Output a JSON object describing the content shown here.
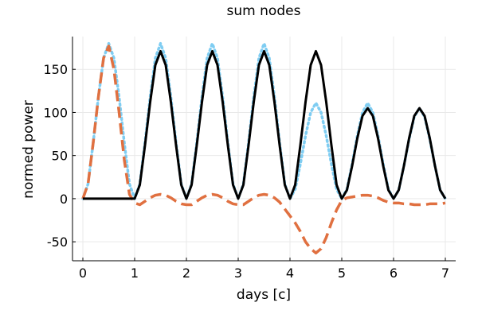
{
  "chart_data": {
    "type": "line",
    "title": "sum nodes",
    "xlabel": "days [c]",
    "ylabel": "normed power",
    "xlim": [
      -0.2,
      7.2
    ],
    "ylim": [
      -72,
      188
    ],
    "xticks": [
      0,
      1,
      2,
      3,
      4,
      5,
      6,
      7
    ],
    "xtick_labels": [
      "0",
      "1",
      "2",
      "3",
      "4",
      "5",
      "6",
      "7"
    ],
    "yticks": [
      -50,
      0,
      50,
      100,
      150
    ],
    "ytick_labels": [
      "-50",
      "0",
      "50",
      "100",
      "150"
    ],
    "grid": true,
    "legend": "none",
    "series": [
      {
        "color": "#7fcdf2",
        "style": "dotted",
        "x": [
          0,
          0.1,
          0.2,
          0.3,
          0.4,
          0.5,
          0.6,
          0.7,
          0.8,
          0.9,
          1.0,
          1.1,
          1.2,
          1.3,
          1.4,
          1.5,
          1.6,
          1.7,
          1.8,
          1.9,
          2.0,
          2.1,
          2.2,
          2.3,
          2.4,
          2.5,
          2.6,
          2.7,
          2.8,
          2.9,
          3.0,
          3.1,
          3.2,
          3.3,
          3.4,
          3.5,
          3.6,
          3.7,
          3.8,
          3.9,
          4.0,
          4.1,
          4.2,
          4.3,
          4.4,
          4.5,
          4.6,
          4.7,
          4.8,
          4.9,
          5.0,
          5.1,
          5.2,
          5.3,
          5.4,
          5.5,
          5.6,
          5.7,
          5.8,
          5.9,
          6.0,
          6.1,
          6.2,
          6.3,
          6.4,
          6.5,
          6.6,
          6.7,
          6.8,
          6.9,
          7.0
        ],
        "y": [
          0,
          17,
          65,
          118,
          163,
          180,
          163,
          118,
          65,
          17,
          0,
          17,
          65,
          118,
          163,
          180,
          163,
          118,
          65,
          17,
          0,
          17,
          65,
          118,
          163,
          180,
          163,
          118,
          65,
          17,
          0,
          17,
          65,
          118,
          163,
          180,
          163,
          118,
          65,
          17,
          0,
          11,
          40,
          73,
          100,
          111,
          100,
          73,
          40,
          11,
          0,
          11,
          40,
          73,
          100,
          111,
          100,
          73,
          40,
          11,
          0,
          10,
          38,
          69,
          95,
          105,
          95,
          69,
          38,
          10,
          0
        ]
      },
      {
        "color": "#e07040",
        "style": "dashed",
        "x": [
          0,
          0.1,
          0.2,
          0.3,
          0.4,
          0.5,
          0.6,
          0.7,
          0.8,
          0.9,
          1.0,
          1.1,
          1.2,
          1.3,
          1.4,
          1.5,
          1.6,
          1.7,
          1.8,
          1.9,
          2.0,
          2.1,
          2.2,
          2.3,
          2.4,
          2.5,
          2.6,
          2.7,
          2.8,
          2.9,
          3.0,
          3.1,
          3.2,
          3.3,
          3.4,
          3.5,
          3.6,
          3.7,
          3.8,
          3.9,
          4.0,
          4.1,
          4.2,
          4.3,
          4.4,
          4.5,
          4.6,
          4.7,
          4.8,
          4.9,
          5.0,
          5.1,
          5.2,
          5.3,
          5.4,
          5.5,
          5.6,
          5.7,
          5.8,
          5.9,
          6.0,
          6.1,
          6.2,
          6.3,
          6.4,
          6.5,
          6.6,
          6.7,
          6.8,
          6.9,
          7.0
        ],
        "y": [
          0,
          17,
          65,
          118,
          163,
          177,
          150,
          100,
          45,
          5,
          -5,
          -7,
          -3,
          1,
          4,
          5,
          4,
          1,
          -3,
          -6,
          -7,
          -7,
          -3,
          1,
          4,
          5,
          4,
          1,
          -3,
          -6,
          -7,
          -7,
          -3,
          1,
          4,
          5,
          4,
          1,
          -4,
          -12,
          -20,
          -28,
          -38,
          -50,
          -58,
          -63,
          -58,
          -45,
          -28,
          -13,
          -2,
          1,
          2,
          3,
          4,
          4,
          3,
          1,
          -2,
          -4,
          -5,
          -5,
          -6,
          -6,
          -7,
          -7,
          -7,
          -6,
          -6,
          -6,
          -5
        ]
      },
      {
        "color": "#000000",
        "style": "solid",
        "x": [
          0,
          0.1,
          0.2,
          0.3,
          0.4,
          0.5,
          0.6,
          0.7,
          0.8,
          0.9,
          1.0,
          1.1,
          1.2,
          1.3,
          1.4,
          1.5,
          1.6,
          1.7,
          1.8,
          1.9,
          2.0,
          2.1,
          2.2,
          2.3,
          2.4,
          2.5,
          2.6,
          2.7,
          2.8,
          2.9,
          3.0,
          3.1,
          3.2,
          3.3,
          3.4,
          3.5,
          3.6,
          3.7,
          3.8,
          3.9,
          4.0,
          4.1,
          4.2,
          4.3,
          4.4,
          4.5,
          4.6,
          4.7,
          4.8,
          4.9,
          5.0,
          5.1,
          5.2,
          5.3,
          5.4,
          5.5,
          5.6,
          5.7,
          5.8,
          5.9,
          6.0,
          6.1,
          6.2,
          6.3,
          6.4,
          6.5,
          6.6,
          6.7,
          6.8,
          6.9,
          7.0
        ],
        "y": [
          0,
          0,
          0,
          0,
          0,
          0,
          0,
          0,
          0,
          0,
          0,
          16,
          62,
          112,
          155,
          171,
          155,
          112,
          62,
          16,
          0,
          16,
          62,
          112,
          155,
          171,
          155,
          112,
          62,
          16,
          0,
          16,
          62,
          112,
          155,
          171,
          155,
          112,
          62,
          16,
          0,
          16,
          62,
          112,
          155,
          171,
          155,
          112,
          62,
          16,
          0,
          10,
          38,
          70,
          96,
          105,
          96,
          70,
          38,
          10,
          0,
          10,
          38,
          70,
          96,
          105,
          96,
          70,
          38,
          10,
          0
        ]
      }
    ]
  }
}
